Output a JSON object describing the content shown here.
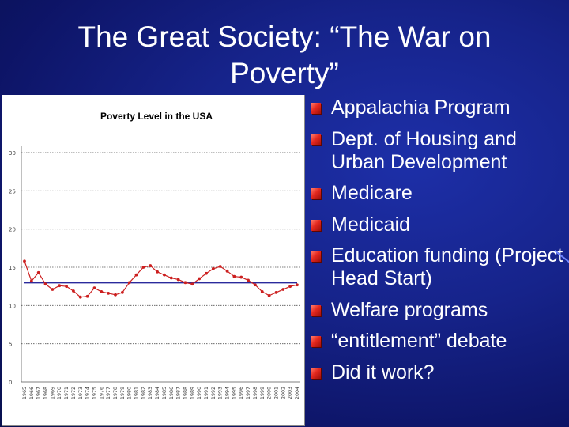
{
  "slide": {
    "title_line1": "The Great Society: “The War on",
    "title_line2": "Poverty”"
  },
  "bullets": [
    {
      "text": "Appalachia Program",
      "icon": "red-square-bullet-icon"
    },
    {
      "text": "Dept. of Housing and Urban Development",
      "icon": "red-square-bullet-icon"
    },
    {
      "text": "Medicare",
      "icon": "red-square-bullet-icon"
    },
    {
      "text": "Medicaid",
      "icon": "red-square-bullet-icon"
    },
    {
      "text": "Education funding (Project Head Start)",
      "icon": "red-square-bullet-icon"
    },
    {
      "text": "Welfare programs",
      "icon": "red-square-bullet-icon"
    },
    {
      "text": "“entitlement” debate",
      "icon": "red-square-bullet-icon"
    },
    {
      "text": "Did it work?",
      "icon": "red-square-bullet-icon"
    }
  ],
  "colors": {
    "background": "#16238a",
    "bullet": "#e4281e",
    "series": "#cc1f1f",
    "average_line": "#2a2a9c"
  },
  "chart_data": {
    "type": "line",
    "title": "Poverty Level in the USA",
    "xlabel": "",
    "ylabel": "",
    "ylim": [
      0,
      30
    ],
    "y_ticks": [
      "0",
      "5",
      "10",
      "15",
      "20",
      "25",
      "30"
    ],
    "x": [
      "1965",
      "1966",
      "1967",
      "1968",
      "1969",
      "1970",
      "1971",
      "1972",
      "1973",
      "1974",
      "1975",
      "1976",
      "1977",
      "1978",
      "1979",
      "1980",
      "1981",
      "1982",
      "1983",
      "1984",
      "1985",
      "1986",
      "1987",
      "1988",
      "1989",
      "1990",
      "1991",
      "1992",
      "1993",
      "1994",
      "1995",
      "1996",
      "1997",
      "1998",
      "1999",
      "2000",
      "2001",
      "2002",
      "2003",
      "2004"
    ],
    "series": [
      {
        "values": [
          15.8,
          13.2,
          14.3,
          12.8,
          12.1,
          12.6,
          12.5,
          11.9,
          11.1,
          11.2,
          12.3,
          11.8,
          11.6,
          11.4,
          11.7,
          13.0,
          14.0,
          15.0,
          15.2,
          14.4,
          14.0,
          13.6,
          13.4,
          13.0,
          12.8,
          13.5,
          14.2,
          14.8,
          15.1,
          14.5,
          13.8,
          13.7,
          13.3,
          12.7,
          11.8,
          11.3,
          11.7,
          12.1,
          12.5,
          12.7
        ],
        "markers": true,
        "grid": true
      }
    ],
    "reference_line": {
      "value": 13.0
    },
    "legend": "none"
  }
}
